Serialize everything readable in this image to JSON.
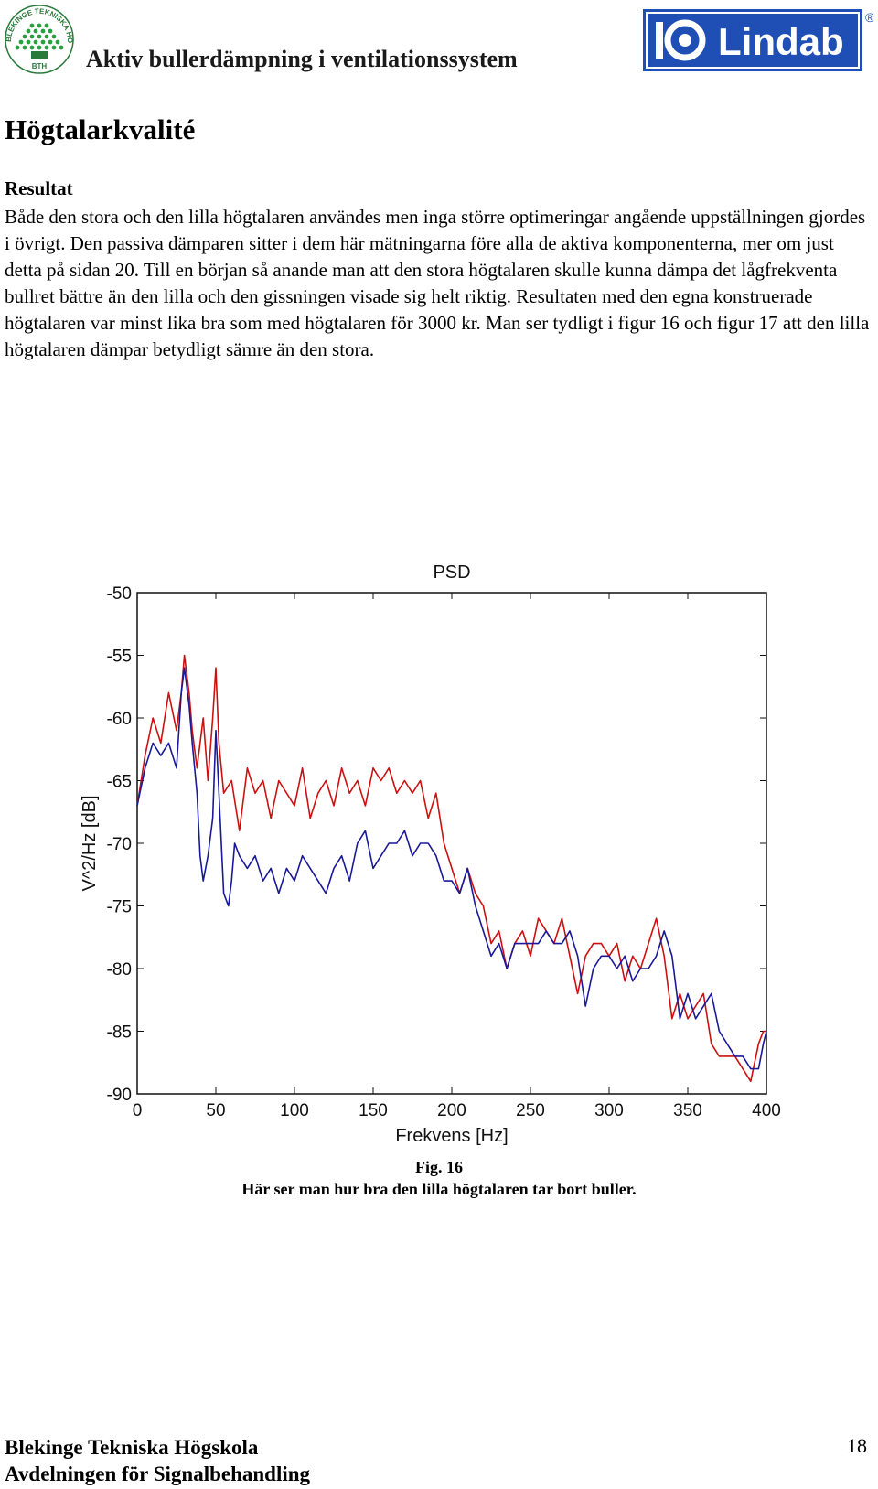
{
  "header": {
    "title": "Aktiv bullerdämpning i ventilationssystem",
    "bth_logo_text": "BLEKINGE TEKNISKA HÖGSKOLA",
    "bth_logo_abbrev": "BTH",
    "lindab_logo_text": "Lindab",
    "lindab_registered": "®"
  },
  "section": {
    "title": "Högtalarkvalité",
    "result_heading": "Resultat",
    "paragraph": "Både den stora och den lilla högtalaren användes men inga större optimeringar angående uppställningen gjordes i övrigt. Den passiva dämparen sitter i dem här mätningarna före alla de aktiva komponenterna, mer om just detta på sidan 20. Till en början så anande man att den stora högtalaren skulle kunna dämpa det lågfrekventa bullret bättre än den lilla och den gissningen visade sig helt riktig. Resultaten med den egna konstruerade högtalaren var minst lika bra som med högtalaren för 3000 kr. Man ser tydligt i figur 16 och figur 17 att den lilla högtalaren dämpar betydligt sämre än den stora."
  },
  "chart_data": {
    "type": "line",
    "title": "PSD",
    "xlabel": "Frekvens [Hz]",
    "ylabel": "V^2/Hz [dB]",
    "xlim": [
      0,
      400
    ],
    "ylim": [
      -90,
      -50
    ],
    "xticks": [
      "0",
      "50",
      "100",
      "150",
      "200",
      "250",
      "300",
      "350",
      "400"
    ],
    "yticks": [
      "-50",
      "-55",
      "-60",
      "-65",
      "-70",
      "-75",
      "-80",
      "-85",
      "-90"
    ],
    "grid": false,
    "legend": "none",
    "series": [
      {
        "color": "#cc1111",
        "x": [
          0,
          5,
          10,
          15,
          20,
          25,
          28,
          30,
          33,
          35,
          38,
          42,
          45,
          48,
          50,
          52,
          55,
          60,
          65,
          70,
          75,
          80,
          85,
          90,
          95,
          100,
          105,
          110,
          115,
          120,
          125,
          130,
          135,
          140,
          145,
          150,
          155,
          160,
          165,
          170,
          175,
          180,
          185,
          190,
          195,
          200,
          205,
          210,
          215,
          220,
          225,
          230,
          235,
          240,
          245,
          250,
          255,
          260,
          265,
          270,
          275,
          280,
          285,
          290,
          295,
          300,
          305,
          310,
          315,
          320,
          325,
          330,
          335,
          340,
          345,
          350,
          355,
          360,
          365,
          370,
          375,
          380,
          385,
          390,
          395,
          398,
          400
        ],
        "y": [
          -67,
          -63,
          -60,
          -62,
          -58,
          -61,
          -58,
          -55,
          -58,
          -61,
          -64,
          -60,
          -65,
          -60,
          -56,
          -62,
          -66,
          -65,
          -69,
          -64,
          -66,
          -65,
          -68,
          -65,
          -66,
          -67,
          -64,
          -68,
          -66,
          -65,
          -67,
          -64,
          -66,
          -65,
          -67,
          -64,
          -65,
          -64,
          -66,
          -65,
          -66,
          -65,
          -68,
          -66,
          -70,
          -72,
          -74,
          -72,
          -74,
          -75,
          -78,
          -77,
          -80,
          -78,
          -77,
          -79,
          -76,
          -77,
          -78,
          -76,
          -79,
          -82,
          -79,
          -78,
          -78,
          -79,
          -78,
          -81,
          -79,
          -80,
          -78,
          -76,
          -79,
          -84,
          -82,
          -84,
          -83,
          -82,
          -86,
          -87,
          -87,
          -87,
          -88,
          -89,
          -86,
          -85,
          -85
        ]
      },
      {
        "color": "#1a1a99",
        "x": [
          0,
          5,
          10,
          15,
          20,
          25,
          28,
          30,
          33,
          35,
          38,
          40,
          42,
          45,
          48,
          50,
          52,
          55,
          58,
          60,
          62,
          65,
          70,
          75,
          80,
          85,
          90,
          95,
          100,
          105,
          110,
          115,
          120,
          125,
          130,
          135,
          140,
          145,
          150,
          155,
          160,
          165,
          170,
          175,
          180,
          185,
          190,
          195,
          200,
          205,
          210,
          215,
          220,
          225,
          230,
          235,
          240,
          245,
          250,
          255,
          260,
          265,
          270,
          275,
          280,
          285,
          290,
          295,
          300,
          305,
          310,
          315,
          320,
          325,
          330,
          335,
          340,
          345,
          350,
          355,
          360,
          365,
          370,
          375,
          380,
          385,
          390,
          395,
          398,
          400
        ],
        "y": [
          -67,
          -64,
          -62,
          -63,
          -62,
          -64,
          -58,
          -56,
          -59,
          -62,
          -66,
          -71,
          -73,
          -71,
          -68,
          -61,
          -66,
          -74,
          -75,
          -73,
          -70,
          -71,
          -72,
          -71,
          -73,
          -72,
          -74,
          -72,
          -73,
          -71,
          -72,
          -73,
          -74,
          -72,
          -71,
          -73,
          -70,
          -69,
          -72,
          -71,
          -70,
          -70,
          -69,
          -71,
          -70,
          -70,
          -71,
          -73,
          -73,
          -74,
          -72,
          -75,
          -77,
          -79,
          -78,
          -80,
          -78,
          -78,
          -78,
          -78,
          -77,
          -78,
          -78,
          -77,
          -79,
          -83,
          -80,
          -79,
          -79,
          -80,
          -79,
          -81,
          -80,
          -80,
          -79,
          -77,
          -79,
          -84,
          -82,
          -84,
          -83,
          -82,
          -85,
          -86,
          -87,
          -87,
          -88,
          -88,
          -86,
          -85
        ]
      }
    ]
  },
  "figure": {
    "label": "Fig. 16",
    "caption": "Här ser man hur bra den lilla högtalaren tar bort buller."
  },
  "footer": {
    "line1": "Blekinge Tekniska Högskola",
    "line2": "Avdelningen för Signalbehandling",
    "page_number": "18"
  }
}
